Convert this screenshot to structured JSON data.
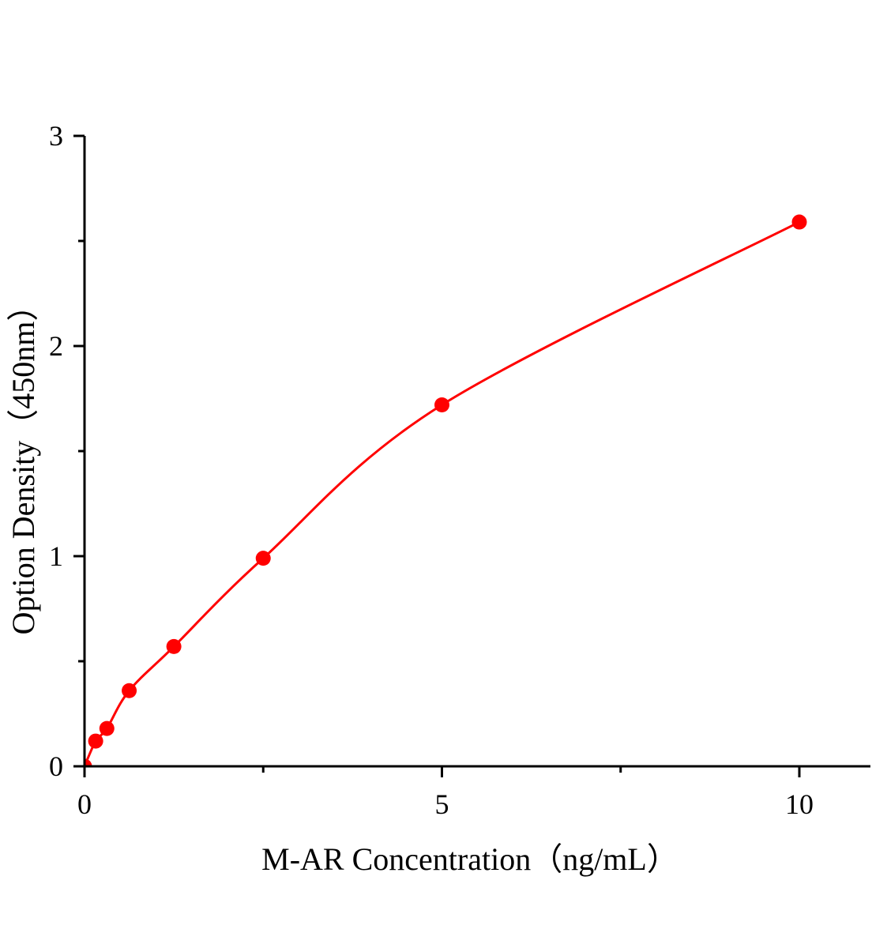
{
  "chart_data": {
    "type": "scatter",
    "title": "",
    "xlabel": "M-AR Concentration（ng/mL）",
    "ylabel": "Option Density（450nm）",
    "xlim": [
      0,
      11
    ],
    "ylim": [
      0,
      3
    ],
    "x_ticks": [
      0,
      5,
      10
    ],
    "x_tick_labels": [
      "0",
      "5",
      "10"
    ],
    "x_minor_ticks": [
      2.5,
      7.5
    ],
    "y_ticks": [
      0,
      1,
      2,
      3
    ],
    "y_tick_labels": [
      "0",
      "1",
      "2",
      "3"
    ],
    "y_minor_ticks": [
      0.5,
      1.5,
      2.5
    ],
    "grid": false,
    "series": [
      {
        "color": "#ff0000",
        "marker": "circle",
        "fit_line": true,
        "x": [
          0,
          0.156,
          0.3125,
          0.625,
          1.25,
          2.5,
          5,
          10
        ],
        "y": [
          0,
          0.12,
          0.18,
          0.36,
          0.57,
          0.99,
          1.72,
          2.59
        ]
      }
    ]
  }
}
